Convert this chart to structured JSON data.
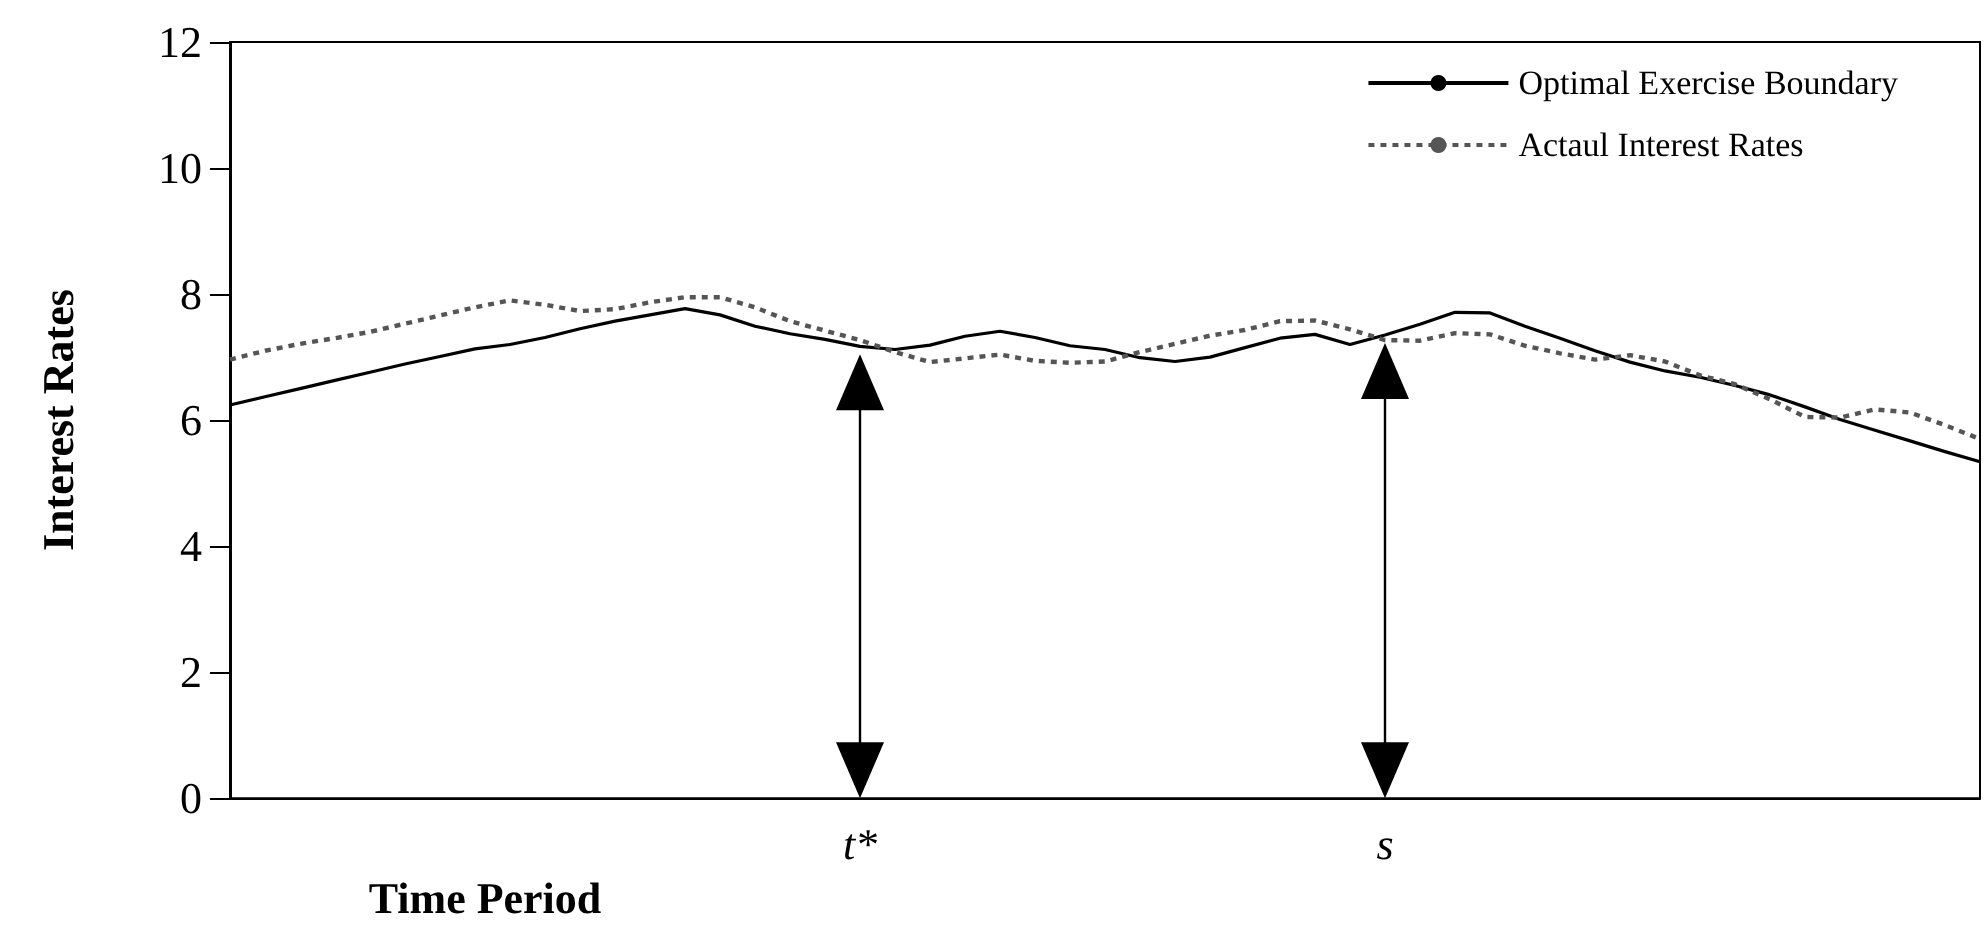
{
  "chart_data": {
    "type": "line",
    "xlabel": "Time Period",
    "ylabel": "Interest Rates",
    "categories": [
      null,
      null,
      null,
      null,
      null,
      null,
      null,
      null,
      null,
      null,
      null,
      null,
      null,
      null,
      null,
      null,
      null,
      null,
      "t*",
      null,
      null,
      null,
      null,
      null,
      null,
      null,
      null,
      null,
      null,
      null,
      null,
      null,
      null,
      "s",
      null,
      null,
      null,
      null,
      null,
      null,
      null,
      null,
      null,
      null,
      null,
      null,
      null,
      null,
      null,
      null,
      null
    ],
    "series": [
      {
        "name": "Optimal Exercise Boundary",
        "color": "#000000",
        "line_style": "solid",
        "values": [
          6.24,
          6.37,
          6.5,
          6.63,
          6.76,
          6.89,
          7.01,
          7.13,
          7.2,
          7.31,
          7.45,
          7.57,
          7.67,
          7.77,
          7.67,
          7.49,
          7.37,
          7.28,
          7.17,
          7.12,
          7.19,
          7.33,
          7.41,
          7.31,
          7.18,
          7.12,
          6.99,
          6.93,
          7.0,
          7.15,
          7.3,
          7.36,
          7.2,
          7.35,
          7.52,
          7.71,
          7.7,
          7.49,
          7.3,
          7.1,
          6.92,
          6.78,
          6.68,
          6.55,
          6.4,
          6.21,
          6.01,
          5.84,
          5.67,
          5.5,
          5.34
        ]
      },
      {
        "name": "Actaul Interest Rates",
        "color": "#555555",
        "line_style": "dotted",
        "values": [
          6.96,
          7.1,
          7.21,
          7.3,
          7.4,
          7.53,
          7.66,
          7.79,
          7.9,
          7.83,
          7.73,
          7.76,
          7.87,
          7.95,
          7.95,
          7.79,
          7.57,
          7.42,
          7.27,
          7.08,
          6.92,
          6.98,
          7.04,
          6.94,
          6.91,
          6.93,
          7.08,
          7.21,
          7.34,
          7.43,
          7.57,
          7.58,
          7.44,
          7.27,
          7.26,
          7.38,
          7.36,
          7.18,
          7.06,
          6.96,
          7.03,
          6.93,
          6.71,
          6.57,
          6.33,
          6.05,
          6.04,
          6.17,
          6.12,
          5.92,
          5.7
        ]
      }
    ],
    "ylim": [
      0,
      12
    ],
    "yticks": [
      0,
      2,
      4,
      6,
      8,
      10,
      12
    ],
    "grid": false,
    "legend": "top right",
    "marker": "none"
  }
}
